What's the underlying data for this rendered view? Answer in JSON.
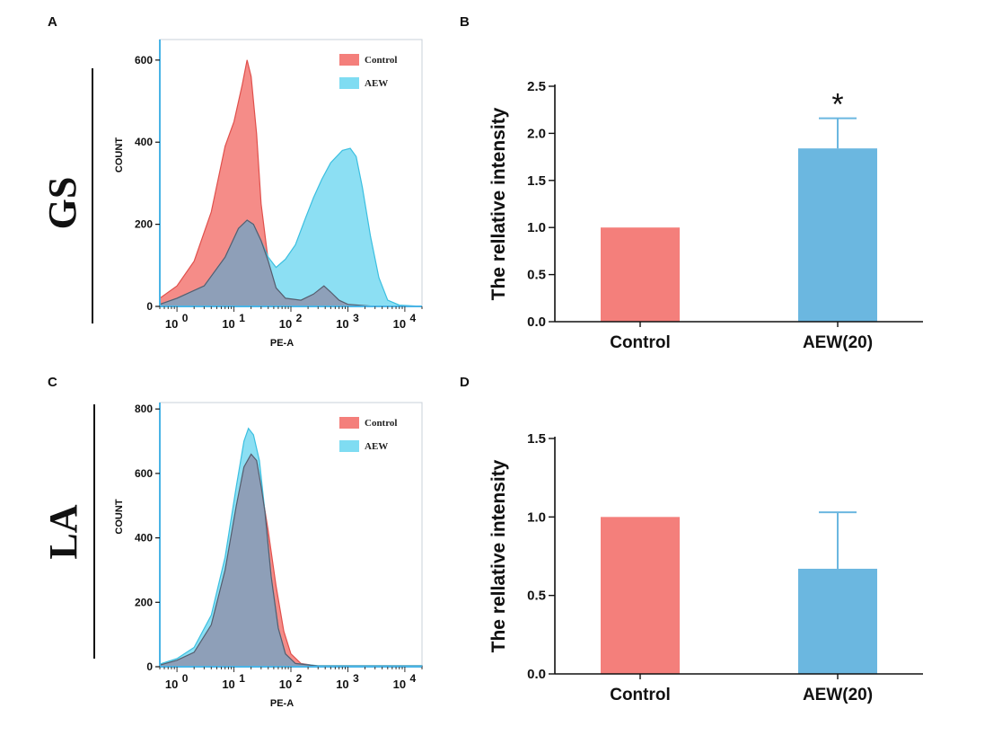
{
  "panels": {
    "A": "A",
    "B": "B",
    "C": "C",
    "D": "D"
  },
  "rows": {
    "top": "GS",
    "bottom": "LA"
  },
  "colors": {
    "control_fill": "#f47f7b",
    "aew_fill": "#7fdcf2",
    "overlap_fill": "#8e9cb5",
    "bar_control": "#f47f7b",
    "bar_aew": "#6bb7e0",
    "axis_blue": "#4ab4e6"
  },
  "chart_data": [
    {
      "id": "A",
      "type": "area",
      "title": "",
      "xlabel": "PE-A",
      "ylabel": "COUNT",
      "xscale": "log",
      "xlim": [
        0.5,
        20000
      ],
      "ylim": [
        0,
        650
      ],
      "xticks": [
        {
          "base": "10",
          "exp": "0"
        },
        {
          "base": "10",
          "exp": "1"
        },
        {
          "base": "10",
          "exp": "2"
        },
        {
          "base": "10",
          "exp": "3"
        },
        {
          "base": "10",
          "exp": "4"
        }
      ],
      "yticks": [
        "0",
        "200",
        "400",
        "600"
      ],
      "legend": [
        "Control",
        "AEW"
      ],
      "legend_position": "top-right",
      "series": [
        {
          "name": "Control",
          "points": [
            [
              0.5,
              20
            ],
            [
              1,
              50
            ],
            [
              2,
              110
            ],
            [
              4,
              230
            ],
            [
              7,
              390
            ],
            [
              10,
              450
            ],
            [
              14,
              540
            ],
            [
              17,
              600
            ],
            [
              20,
              560
            ],
            [
              25,
              420
            ],
            [
              30,
              250
            ],
            [
              40,
              110
            ],
            [
              55,
              45
            ],
            [
              80,
              20
            ],
            [
              150,
              8
            ],
            [
              400,
              3
            ],
            [
              2000,
              0
            ]
          ]
        },
        {
          "name": "AEW",
          "points": [
            [
              0.5,
              5
            ],
            [
              1,
              20
            ],
            [
              3,
              50
            ],
            [
              7,
              120
            ],
            [
              12,
              190
            ],
            [
              17,
              210
            ],
            [
              22,
              200
            ],
            [
              30,
              160
            ],
            [
              40,
              120
            ],
            [
              55,
              95
            ],
            [
              80,
              115
            ],
            [
              120,
              150
            ],
            [
              180,
              215
            ],
            [
              250,
              265
            ],
            [
              350,
              310
            ],
            [
              500,
              350
            ],
            [
              800,
              380
            ],
            [
              1100,
              385
            ],
            [
              1400,
              365
            ],
            [
              1800,
              290
            ],
            [
              2500,
              170
            ],
            [
              3500,
              70
            ],
            [
              5000,
              15
            ],
            [
              8000,
              3
            ],
            [
              20000,
              0
            ]
          ]
        },
        {
          "name": "overlap",
          "points": [
            [
              0.5,
              5
            ],
            [
              1,
              20
            ],
            [
              3,
              50
            ],
            [
              7,
              120
            ],
            [
              12,
              190
            ],
            [
              17,
              210
            ],
            [
              22,
              200
            ],
            [
              30,
              160
            ],
            [
              40,
              110
            ],
            [
              55,
              45
            ],
            [
              80,
              20
            ],
            [
              150,
              15
            ],
            [
              250,
              30
            ],
            [
              380,
              50
            ],
            [
              500,
              35
            ],
            [
              700,
              15
            ],
            [
              1000,
              5
            ],
            [
              3000,
              0
            ]
          ]
        }
      ]
    },
    {
      "id": "B",
      "type": "bar",
      "categories": [
        "Control",
        "AEW(20)"
      ],
      "values": [
        1.0,
        1.84
      ],
      "errors": [
        0,
        0.32
      ],
      "annotations": [
        "",
        "*"
      ],
      "ylabel": "The rellative intensity",
      "xlabel": "",
      "ylim": [
        0,
        2.5
      ],
      "yticks": [
        "0.0",
        "0.5",
        "1.0",
        "1.5",
        "2.0",
        "2.5"
      ]
    },
    {
      "id": "C",
      "type": "area",
      "title": "",
      "xlabel": "PE-A",
      "ylabel": "COUNT",
      "xscale": "log",
      "xlim": [
        0.5,
        20000
      ],
      "ylim": [
        0,
        820
      ],
      "xticks": [
        {
          "base": "10",
          "exp": "0"
        },
        {
          "base": "10",
          "exp": "1"
        },
        {
          "base": "10",
          "exp": "2"
        },
        {
          "base": "10",
          "exp": "3"
        },
        {
          "base": "10",
          "exp": "4"
        }
      ],
      "yticks": [
        "0",
        "200",
        "400",
        "600",
        "800"
      ],
      "legend": [
        "Control",
        "AEW"
      ],
      "legend_position": "top-right",
      "series": [
        {
          "name": "Control",
          "points": [
            [
              0.5,
              5
            ],
            [
              1,
              20
            ],
            [
              2,
              45
            ],
            [
              4,
              130
            ],
            [
              7,
              300
            ],
            [
              11,
              500
            ],
            [
              15,
              620
            ],
            [
              20,
              660
            ],
            [
              25,
              640
            ],
            [
              30,
              560
            ],
            [
              40,
              420
            ],
            [
              55,
              250
            ],
            [
              75,
              110
            ],
            [
              100,
              40
            ],
            [
              150,
              10
            ],
            [
              300,
              2
            ],
            [
              20000,
              2
            ]
          ]
        },
        {
          "name": "AEW",
          "points": [
            [
              0.5,
              8
            ],
            [
              1,
              25
            ],
            [
              2,
              60
            ],
            [
              4,
              160
            ],
            [
              7,
              340
            ],
            [
              11,
              560
            ],
            [
              15,
              700
            ],
            [
              18,
              740
            ],
            [
              22,
              720
            ],
            [
              28,
              640
            ],
            [
              35,
              480
            ],
            [
              45,
              280
            ],
            [
              60,
              120
            ],
            [
              80,
              40
            ],
            [
              120,
              10
            ],
            [
              300,
              3
            ],
            [
              20000,
              3
            ]
          ]
        },
        {
          "name": "overlap",
          "points": [
            [
              0.5,
              5
            ],
            [
              1,
              20
            ],
            [
              2,
              45
            ],
            [
              4,
              130
            ],
            [
              7,
              300
            ],
            [
              11,
              500
            ],
            [
              15,
              620
            ],
            [
              20,
              660
            ],
            [
              25,
              640
            ],
            [
              30,
              560
            ],
            [
              35,
              480
            ],
            [
              45,
              280
            ],
            [
              60,
              120
            ],
            [
              80,
              40
            ],
            [
              120,
              10
            ],
            [
              300,
              2
            ],
            [
              20000,
              2
            ]
          ]
        }
      ]
    },
    {
      "id": "D",
      "type": "bar",
      "categories": [
        "Control",
        "AEW(20)"
      ],
      "values": [
        1.0,
        0.67
      ],
      "errors": [
        0,
        0.36
      ],
      "annotations": [
        "",
        ""
      ],
      "ylabel": "The rellative intensity",
      "xlabel": "",
      "ylim": [
        0,
        1.5
      ],
      "yticks": [
        "0.0",
        "0.5",
        "1.0",
        "1.5"
      ]
    }
  ]
}
